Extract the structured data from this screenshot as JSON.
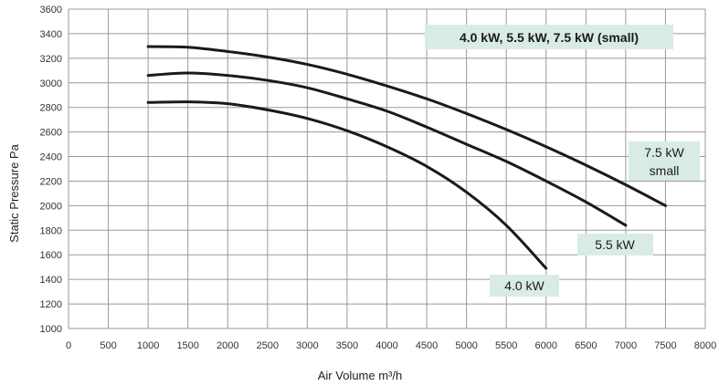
{
  "chart_data": {
    "type": "line",
    "title": "4.0 kW, 5.5 kW, 7.5 kW (small)",
    "xlabel": "Air Volume  m³/h",
    "ylabel": "Static Pressure Pa",
    "xlim": [
      0,
      8000
    ],
    "ylim": [
      1000,
      3600
    ],
    "xticks": [
      0,
      500,
      1000,
      1500,
      2000,
      2500,
      3000,
      3500,
      4000,
      4500,
      5000,
      5500,
      6000,
      6500,
      7000,
      7500,
      8000
    ],
    "yticks": [
      1000,
      1200,
      1400,
      1600,
      1800,
      2000,
      2200,
      2400,
      2600,
      2800,
      3000,
      3200,
      3400,
      3600
    ],
    "grid": true,
    "colors": {
      "line": "#1a1a1a",
      "grid": "#9a9a9a",
      "callout": "#d9ece3"
    },
    "series": [
      {
        "name": "7.5 kW small",
        "label_lines": [
          "7.5 kW",
          "small"
        ],
        "points": [
          [
            1000,
            3295
          ],
          [
            1500,
            3290
          ],
          [
            2000,
            3255
          ],
          [
            2500,
            3210
          ],
          [
            3000,
            3150
          ],
          [
            3500,
            3070
          ],
          [
            4000,
            2975
          ],
          [
            4500,
            2870
          ],
          [
            5000,
            2750
          ],
          [
            5500,
            2620
          ],
          [
            6000,
            2480
          ],
          [
            6500,
            2330
          ],
          [
            7000,
            2170
          ],
          [
            7500,
            2000
          ]
        ]
      },
      {
        "name": "5.5 kW",
        "label_lines": [
          "5.5 kW"
        ],
        "points": [
          [
            1000,
            3060
          ],
          [
            1500,
            3080
          ],
          [
            2000,
            3060
          ],
          [
            2500,
            3020
          ],
          [
            3000,
            2960
          ],
          [
            3500,
            2870
          ],
          [
            4000,
            2770
          ],
          [
            4500,
            2640
          ],
          [
            5000,
            2500
          ],
          [
            5500,
            2360
          ],
          [
            6000,
            2200
          ],
          [
            6500,
            2030
          ],
          [
            7000,
            1840
          ]
        ]
      },
      {
        "name": "4.0 kW",
        "label_lines": [
          "4.0 kW"
        ],
        "points": [
          [
            1000,
            2840
          ],
          [
            1500,
            2845
          ],
          [
            2000,
            2830
          ],
          [
            2500,
            2780
          ],
          [
            3000,
            2710
          ],
          [
            3500,
            2610
          ],
          [
            4000,
            2480
          ],
          [
            4500,
            2320
          ],
          [
            5000,
            2110
          ],
          [
            5500,
            1840
          ],
          [
            6000,
            1490
          ]
        ]
      }
    ]
  }
}
